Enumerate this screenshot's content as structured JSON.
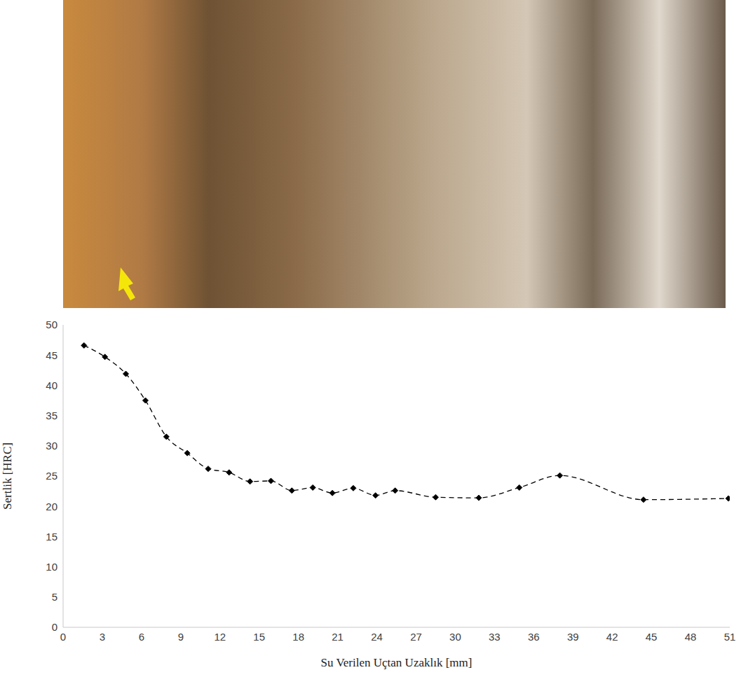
{
  "chart_data": {
    "type": "line",
    "x_label": "Su Verilen Uçtan Uzaklık [mm]",
    "y_label": "Sertlik [HRC]",
    "x": [
      1.6,
      3.2,
      4.8,
      6.3,
      7.9,
      9.5,
      11.1,
      12.7,
      14.3,
      15.9,
      17.5,
      19.1,
      20.6,
      22.2,
      23.9,
      25.4,
      28.5,
      31.8,
      34.9,
      38.0,
      44.4,
      50.9
    ],
    "values": [
      46.6,
      44.7,
      41.9,
      37.5,
      31.5,
      28.8,
      26.2,
      25.6,
      24.1,
      24.2,
      22.6,
      23.1,
      22.2,
      23.0,
      21.8,
      22.6,
      21.5,
      21.4,
      23.1,
      25.1,
      21.1,
      21.3
    ],
    "color": "#000000",
    "marker": "diamond",
    "line_style": "dashed",
    "xlim": [
      0,
      51
    ],
    "xticks": [
      0,
      3,
      6,
      9,
      12,
      15,
      18,
      21,
      24,
      27,
      30,
      33,
      36,
      39,
      42,
      45,
      48,
      51
    ],
    "ylim": [
      0,
      50
    ],
    "yticks": [
      0,
      5,
      10,
      15,
      20,
      25,
      30,
      35,
      40,
      45,
      50
    ],
    "grid": false
  }
}
